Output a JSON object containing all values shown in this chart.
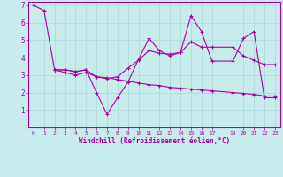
{
  "title": "",
  "xlabel": "Windchill (Refroidissement éolien,°C)",
  "background_color": "#c8ecec",
  "grid_color": "#a8d8d8",
  "line_color": "#aa00aa",
  "xlim": [
    -0.5,
    23.5
  ],
  "ylim": [
    0,
    7.2
  ],
  "xticks": [
    0,
    1,
    2,
    3,
    4,
    5,
    6,
    7,
    8,
    9,
    10,
    11,
    12,
    13,
    14,
    15,
    16,
    17,
    19,
    20,
    21,
    22,
    23
  ],
  "yticks": [
    1,
    2,
    3,
    4,
    5,
    6,
    7
  ],
  "line1_x": [
    0,
    1,
    2,
    3,
    4,
    5,
    6,
    7,
    8,
    9,
    10,
    11,
    12,
    13,
    14,
    15,
    16,
    17,
    19,
    20,
    21,
    22,
    23
  ],
  "line1_y": [
    7.0,
    6.7,
    3.3,
    3.3,
    3.2,
    3.3,
    2.0,
    0.75,
    1.7,
    2.6,
    3.9,
    5.1,
    4.4,
    4.1,
    4.3,
    6.4,
    5.5,
    3.8,
    3.8,
    5.1,
    5.5,
    1.7,
    1.7
  ],
  "line2_x": [
    2,
    3,
    4,
    5,
    6,
    7,
    8,
    9,
    10,
    11,
    12,
    13,
    14,
    15,
    16,
    17,
    19,
    20,
    21,
    22,
    23
  ],
  "line2_y": [
    3.3,
    3.3,
    3.2,
    3.3,
    2.9,
    2.8,
    2.9,
    3.4,
    3.85,
    4.4,
    4.25,
    4.2,
    4.3,
    4.9,
    4.6,
    4.6,
    4.6,
    4.1,
    3.85,
    3.6,
    3.6
  ],
  "line3_x": [
    2,
    3,
    4,
    5,
    6,
    7,
    8,
    9,
    10,
    11,
    12,
    13,
    14,
    15,
    16,
    17,
    19,
    20,
    21,
    22,
    23
  ],
  "line3_y": [
    3.3,
    3.15,
    3.0,
    3.15,
    2.9,
    2.85,
    2.75,
    2.65,
    2.55,
    2.45,
    2.4,
    2.3,
    2.25,
    2.2,
    2.15,
    2.1,
    2.0,
    1.95,
    1.9,
    1.8,
    1.8
  ]
}
